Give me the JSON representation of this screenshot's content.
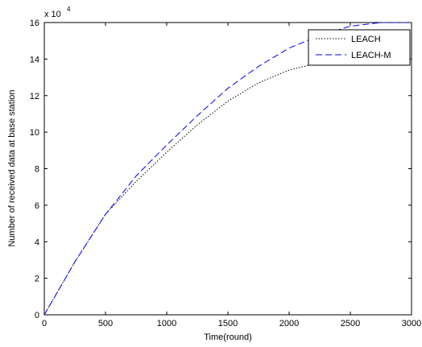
{
  "chart_data": {
    "type": "line",
    "title": "",
    "xlabel": "Time(round)",
    "ylabel": "Number of received data at base station",
    "y_multiplier_label": "x 10",
    "y_multiplier_exp": "4",
    "xlim": [
      0,
      3000
    ],
    "ylim": [
      0,
      16
    ],
    "xticks": [
      "0",
      "500",
      "1000",
      "1500",
      "2000",
      "2500",
      "3000"
    ],
    "yticks": [
      "0",
      "2",
      "4",
      "6",
      "8",
      "10",
      "12",
      "14",
      "16"
    ],
    "grid": false,
    "legend_position": "top-right",
    "series": [
      {
        "name": "LEACH",
        "color": "#000000",
        "style": "dotted",
        "x": [
          0,
          250,
          500,
          750,
          1000,
          1250,
          1500,
          1750,
          2000,
          2250,
          2500,
          2750,
          3000
        ],
        "y": [
          0,
          2.9,
          5.5,
          7.3,
          8.9,
          10.4,
          11.7,
          12.7,
          13.4,
          13.8,
          14.3,
          14.7,
          15.0
        ]
      },
      {
        "name": "LEACH-M",
        "color": "#0000ff",
        "style": "dashed",
        "x": [
          0,
          250,
          500,
          750,
          1000,
          1250,
          1500,
          1750,
          2000,
          2250,
          2500,
          2750,
          3000
        ],
        "y": [
          0,
          2.9,
          5.5,
          7.6,
          9.3,
          10.9,
          12.4,
          13.6,
          14.6,
          15.3,
          15.8,
          16.0,
          16.0
        ]
      }
    ]
  }
}
